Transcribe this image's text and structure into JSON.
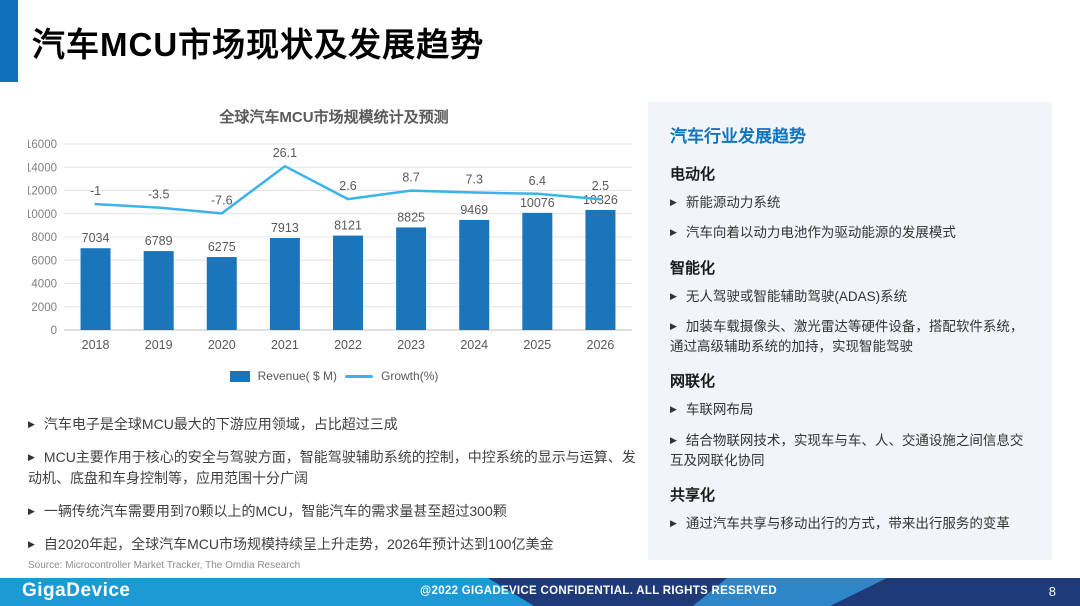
{
  "slide": {
    "title": "汽车MCU市场现状及发展趋势",
    "page_number": "8"
  },
  "colors": {
    "accent": "#1070b8",
    "bar": "#1a75bb",
    "line": "#3ab4e8",
    "panel_bg": "#f1f4f8",
    "panel_title": "#1274bd",
    "footer_bright": "#1b9ad6",
    "footer_navy": "#1e3a78",
    "footer_wedge": "#2e86c9"
  },
  "chart_data": {
    "type": "bar",
    "title": "全球汽车MCU市场规模统计及预测",
    "categories": [
      "2018",
      "2019",
      "2020",
      "2021",
      "2022",
      "2023",
      "2024",
      "2025",
      "2026"
    ],
    "series": [
      {
        "name": "Revenue( $ M)",
        "type": "bar",
        "color": "#1a75bb",
        "values": [
          7034,
          6789,
          6275,
          7913,
          8121,
          8825,
          9469,
          10076,
          10326
        ]
      },
      {
        "name": "Growth(%)",
        "type": "line",
        "color": "#3ab4e8",
        "values": [
          -1,
          -3.5,
          -7.6,
          26.1,
          2.6,
          8.7,
          7.3,
          6.4,
          2.5
        ]
      }
    ],
    "y_axis": {
      "min": 0,
      "max": 16000,
      "step": 2000,
      "ticks": [
        0,
        2000,
        4000,
        6000,
        8000,
        10000,
        12000,
        14000,
        16000
      ]
    },
    "growth_axis": {
      "min": -91,
      "max": 42
    },
    "grid": true,
    "legend_position": "bottom"
  },
  "bullets": [
    "汽车电子是全球MCU最大的下游应用领域，占比超过三成",
    "MCU主要作用于核心的安全与驾驶方面，智能驾驶辅助系统的控制，中控系统的显示与运算、发动机、底盘和车身控制等，应用范围十分广阔",
    "一辆传统汽车需要用到70颗以上的MCU，智能汽车的需求量甚至超过300颗",
    "自2020年起，全球汽车MCU市场规模持续呈上升走势，2026年预计达到100亿美金"
  ],
  "source": "Source: Microcontroller Market Tracker, The Omdia Research",
  "panel": {
    "title": "汽车行业发展趋势",
    "sections": [
      {
        "heading": "电动化",
        "items": [
          "新能源动力系统",
          "汽车向着以动力电池作为驱动能源的发展模式"
        ]
      },
      {
        "heading": "智能化",
        "items": [
          "无人驾驶或智能辅助驾驶(ADAS)系统",
          "加装车载摄像头、激光雷达等硬件设备，搭配软件系统，通过高级辅助系统的加持，实现智能驾驶"
        ]
      },
      {
        "heading": "网联化",
        "items": [
          "车联网布局",
          "结合物联网技术，实现车与车、人、交通设施之间信息交互及网联化协同"
        ]
      },
      {
        "heading": "共享化",
        "items": [
          "通过汽车共享与移动出行的方式，带来出行服务的变革"
        ]
      }
    ]
  },
  "footer": {
    "logo": "GigaDevice",
    "confidential": "@2022 GIGADEVICE CONFIDENTIAL. ALL RIGHTS RESERVED",
    "page": "8"
  },
  "bullet_marker": "▶"
}
